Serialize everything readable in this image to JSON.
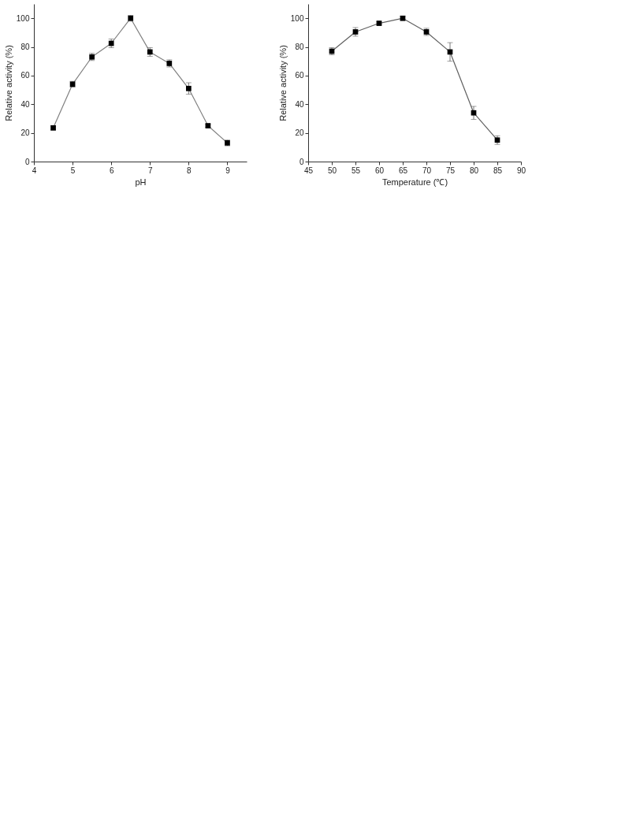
{
  "chart_data": [
    {
      "type": "line",
      "xlabel": "pH",
      "ylabel": "Relative activity (%)",
      "x": [
        4.5,
        5,
        5.5,
        6,
        6.5,
        7,
        7.5,
        8,
        8.5,
        9
      ],
      "series": [
        {
          "color": "#808080",
          "values": [
            23.5,
            54,
            73,
            82.5,
            100,
            76.5,
            68.5,
            51,
            25,
            13
          ],
          "errors": [
            1.5,
            2,
            2.5,
            3,
            2,
            3,
            2.5,
            4,
            1,
            2
          ]
        }
      ],
      "xlim": [
        4,
        9.5
      ],
      "xticks": [
        4,
        5,
        6,
        7,
        8,
        9
      ],
      "ylim": [
        0,
        110
      ],
      "yticks": [
        0,
        20,
        40,
        60,
        80,
        100
      ],
      "grid": false,
      "marker": "square",
      "line_style": "solid"
    },
    {
      "type": "line",
      "xlabel": "Temperature (℃)",
      "ylabel": "Relative activity (%)",
      "x": [
        50,
        55,
        60,
        65,
        70,
        75,
        80,
        85
      ],
      "series": [
        {
          "color": "#606060",
          "values": [
            77,
            90.5,
            96.5,
            100,
            90.5,
            76.5,
            34,
            15
          ],
          "errors": [
            2.5,
            3,
            1,
            1.5,
            2.5,
            6.5,
            4.5,
            3
          ]
        }
      ],
      "xlim": [
        45,
        90
      ],
      "xticks": [
        45,
        50,
        55,
        60,
        65,
        70,
        75,
        80,
        85,
        90
      ],
      "ylim": [
        0,
        110
      ],
      "yticks": [
        0,
        20,
        40,
        60,
        80,
        100
      ],
      "grid": false,
      "marker": "square",
      "line_style": "solid"
    }
  ]
}
